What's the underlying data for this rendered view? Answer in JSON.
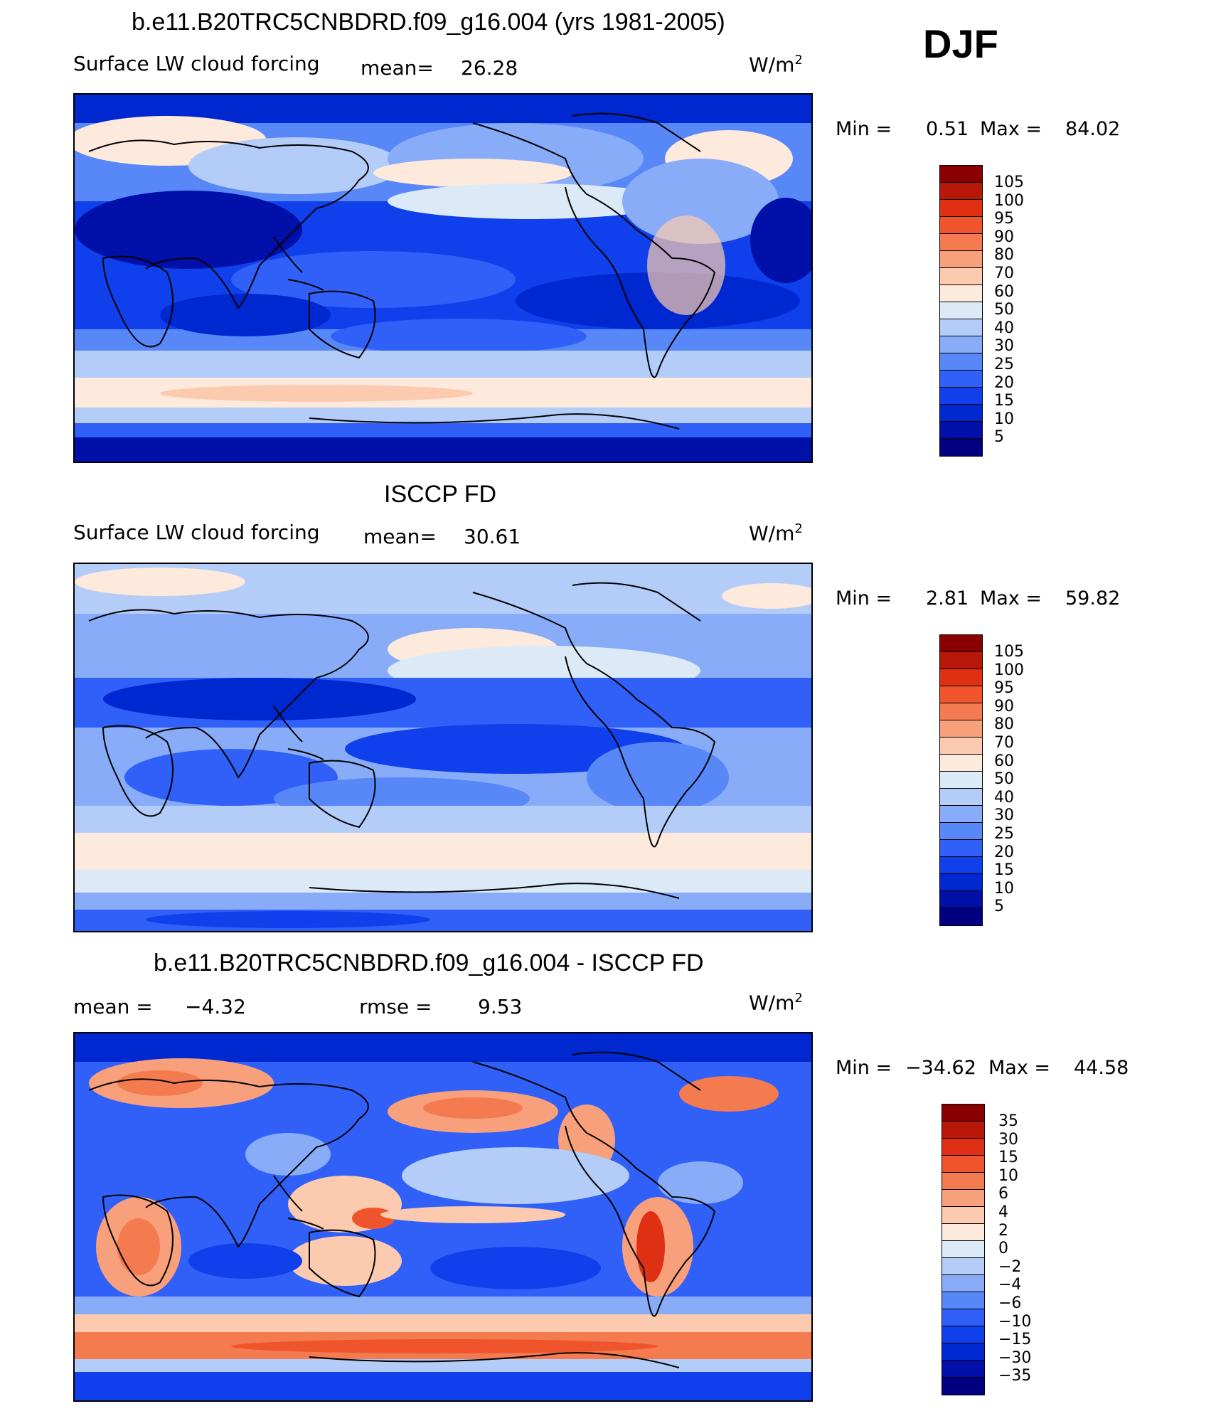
{
  "season": "DJF",
  "colors": {
    "seq": [
      "#000080",
      "#0010a8",
      "#0028d0",
      "#1040ec",
      "#3060f8",
      "#5888f8",
      "#88acf8",
      "#b4ccf8",
      "#dceaf8",
      "#fdeadc",
      "#fccaae",
      "#f8a07c",
      "#f47a50",
      "#f0542c",
      "#e03014",
      "#b81808",
      "#8a0000"
    ],
    "div": [
      "#000080",
      "#0010a8",
      "#0028d0",
      "#1040ec",
      "#3060f8",
      "#5888f8",
      "#88acf8",
      "#b4ccf8",
      "#dceaf8",
      "#fdeadc",
      "#fccaae",
      "#f8a07c",
      "#f47a50",
      "#f0542c",
      "#e03014",
      "#b81808",
      "#8a0000"
    ]
  },
  "panels": [
    {
      "title": "b.e11.B20TRC5CNBDRD.f09_g16.004 (yrs 1981-2005)",
      "variable": "Surface LW cloud forcing",
      "mean_label": "mean=",
      "mean_value": "26.28",
      "units": "W/m",
      "units_exp": "2",
      "min_label": "Min  =",
      "min_value": "0.51",
      "max_label": "Max  =",
      "max_value": "84.02",
      "colorbar_labels": [
        "105",
        "100",
        "95",
        "90",
        "80",
        "70",
        "60",
        "50",
        "40",
        "30",
        "25",
        "20",
        "15",
        "10",
        "5"
      ]
    },
    {
      "title": "ISCCP FD",
      "variable": "Surface LW cloud forcing",
      "mean_label": "mean=",
      "mean_value": "30.61",
      "units": "W/m",
      "units_exp": "2",
      "min_label": "Min  =",
      "min_value": "2.81",
      "max_label": "Max  =",
      "max_value": "59.82",
      "colorbar_labels": [
        "105",
        "100",
        "95",
        "90",
        "80",
        "70",
        "60",
        "50",
        "40",
        "30",
        "25",
        "20",
        "15",
        "10",
        "5"
      ]
    },
    {
      "title": "b.e11.B20TRC5CNBDRD.f09_g16.004 - ISCCP FD",
      "mean_label": "mean  =",
      "mean_value": "−4.32",
      "rmse_label": "rmse  =",
      "rmse_value": "9.53",
      "units": "W/m",
      "units_exp": "2",
      "min_label": "Min  =",
      "min_value": "−34.62",
      "max_label": "Max  =",
      "max_value": "44.58",
      "colorbar_labels": [
        "35",
        "30",
        "15",
        "10",
        "6",
        "4",
        "2",
        "0",
        "−2",
        "−4",
        "−6",
        "−10",
        "−15",
        "−30",
        "−35"
      ]
    }
  ]
}
